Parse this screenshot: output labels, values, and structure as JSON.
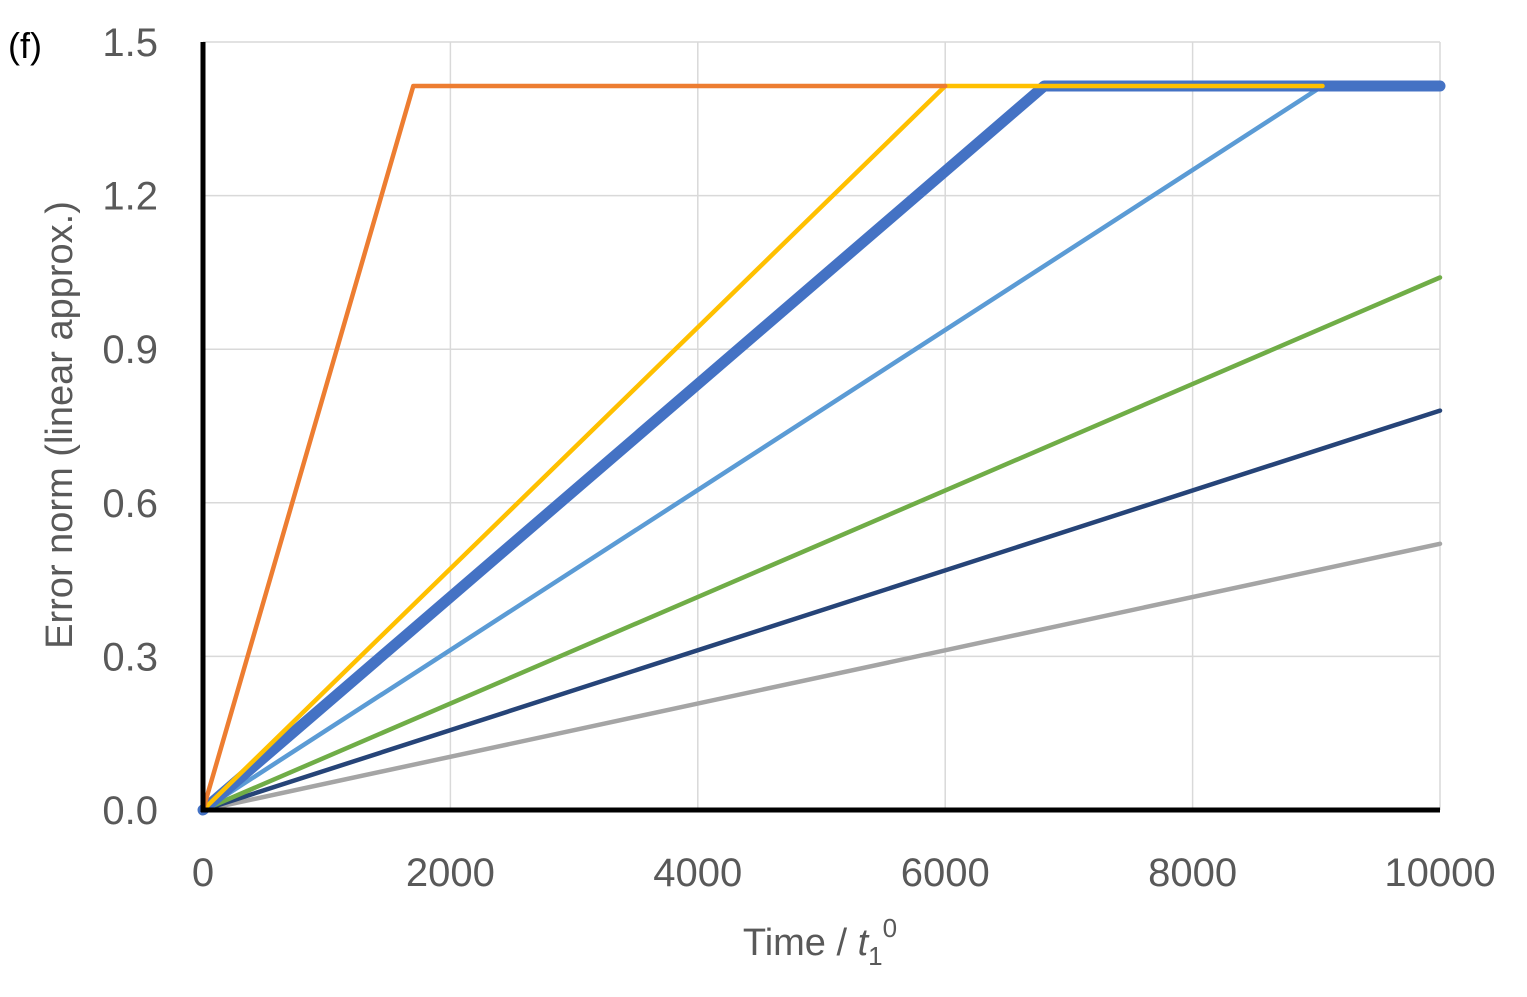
{
  "panel_label": "(f)",
  "chart_data": {
    "type": "line",
    "xlabel": {
      "main": "Time / ",
      "var": "t",
      "sub": "1",
      "sup": "0"
    },
    "ylabel": "Error norm (linear approx.)",
    "xlim": [
      0,
      10000
    ],
    "ylim": [
      0,
      1.5
    ],
    "x_ticks": [
      0,
      2000,
      4000,
      6000,
      8000,
      10000
    ],
    "x_tick_labels": [
      "0",
      "2000",
      "4000",
      "6000",
      "8000",
      "10000"
    ],
    "y_ticks": [
      0,
      0.3,
      0.6,
      0.9,
      1.2,
      1.5
    ],
    "y_tick_labels": [
      "0.0",
      "0.3",
      "0.6",
      "0.9",
      "1.2",
      "1.5"
    ],
    "grid": true,
    "legend": "none",
    "series": [
      {
        "color": "#A5A5A5",
        "width": "normal",
        "x": [
          0,
          10000
        ],
        "y": [
          0,
          0.52
        ]
      },
      {
        "color": "#264478",
        "width": "normal",
        "x": [
          0,
          10000
        ],
        "y": [
          0,
          0.78
        ]
      },
      {
        "color": "#70AD47",
        "width": "normal",
        "x": [
          0,
          10000
        ],
        "y": [
          0,
          1.04
        ]
      },
      {
        "color": "#5B9BD5",
        "width": "normal",
        "x": [
          0,
          9050,
          10000
        ],
        "y": [
          0,
          1.414,
          1.414
        ]
      },
      {
        "color": "#4472C4",
        "width": "thick",
        "x": [
          0,
          6800,
          10000
        ],
        "y": [
          0,
          1.414,
          1.414
        ]
      },
      {
        "color": "#FFC000",
        "width": "normal",
        "x": [
          0,
          6000,
          9050
        ],
        "y": [
          0,
          1.414,
          1.414
        ]
      },
      {
        "color": "#ED7D31",
        "width": "normal",
        "x": [
          0,
          1700,
          6000
        ],
        "y": [
          0,
          1.414,
          1.414
        ]
      }
    ]
  }
}
